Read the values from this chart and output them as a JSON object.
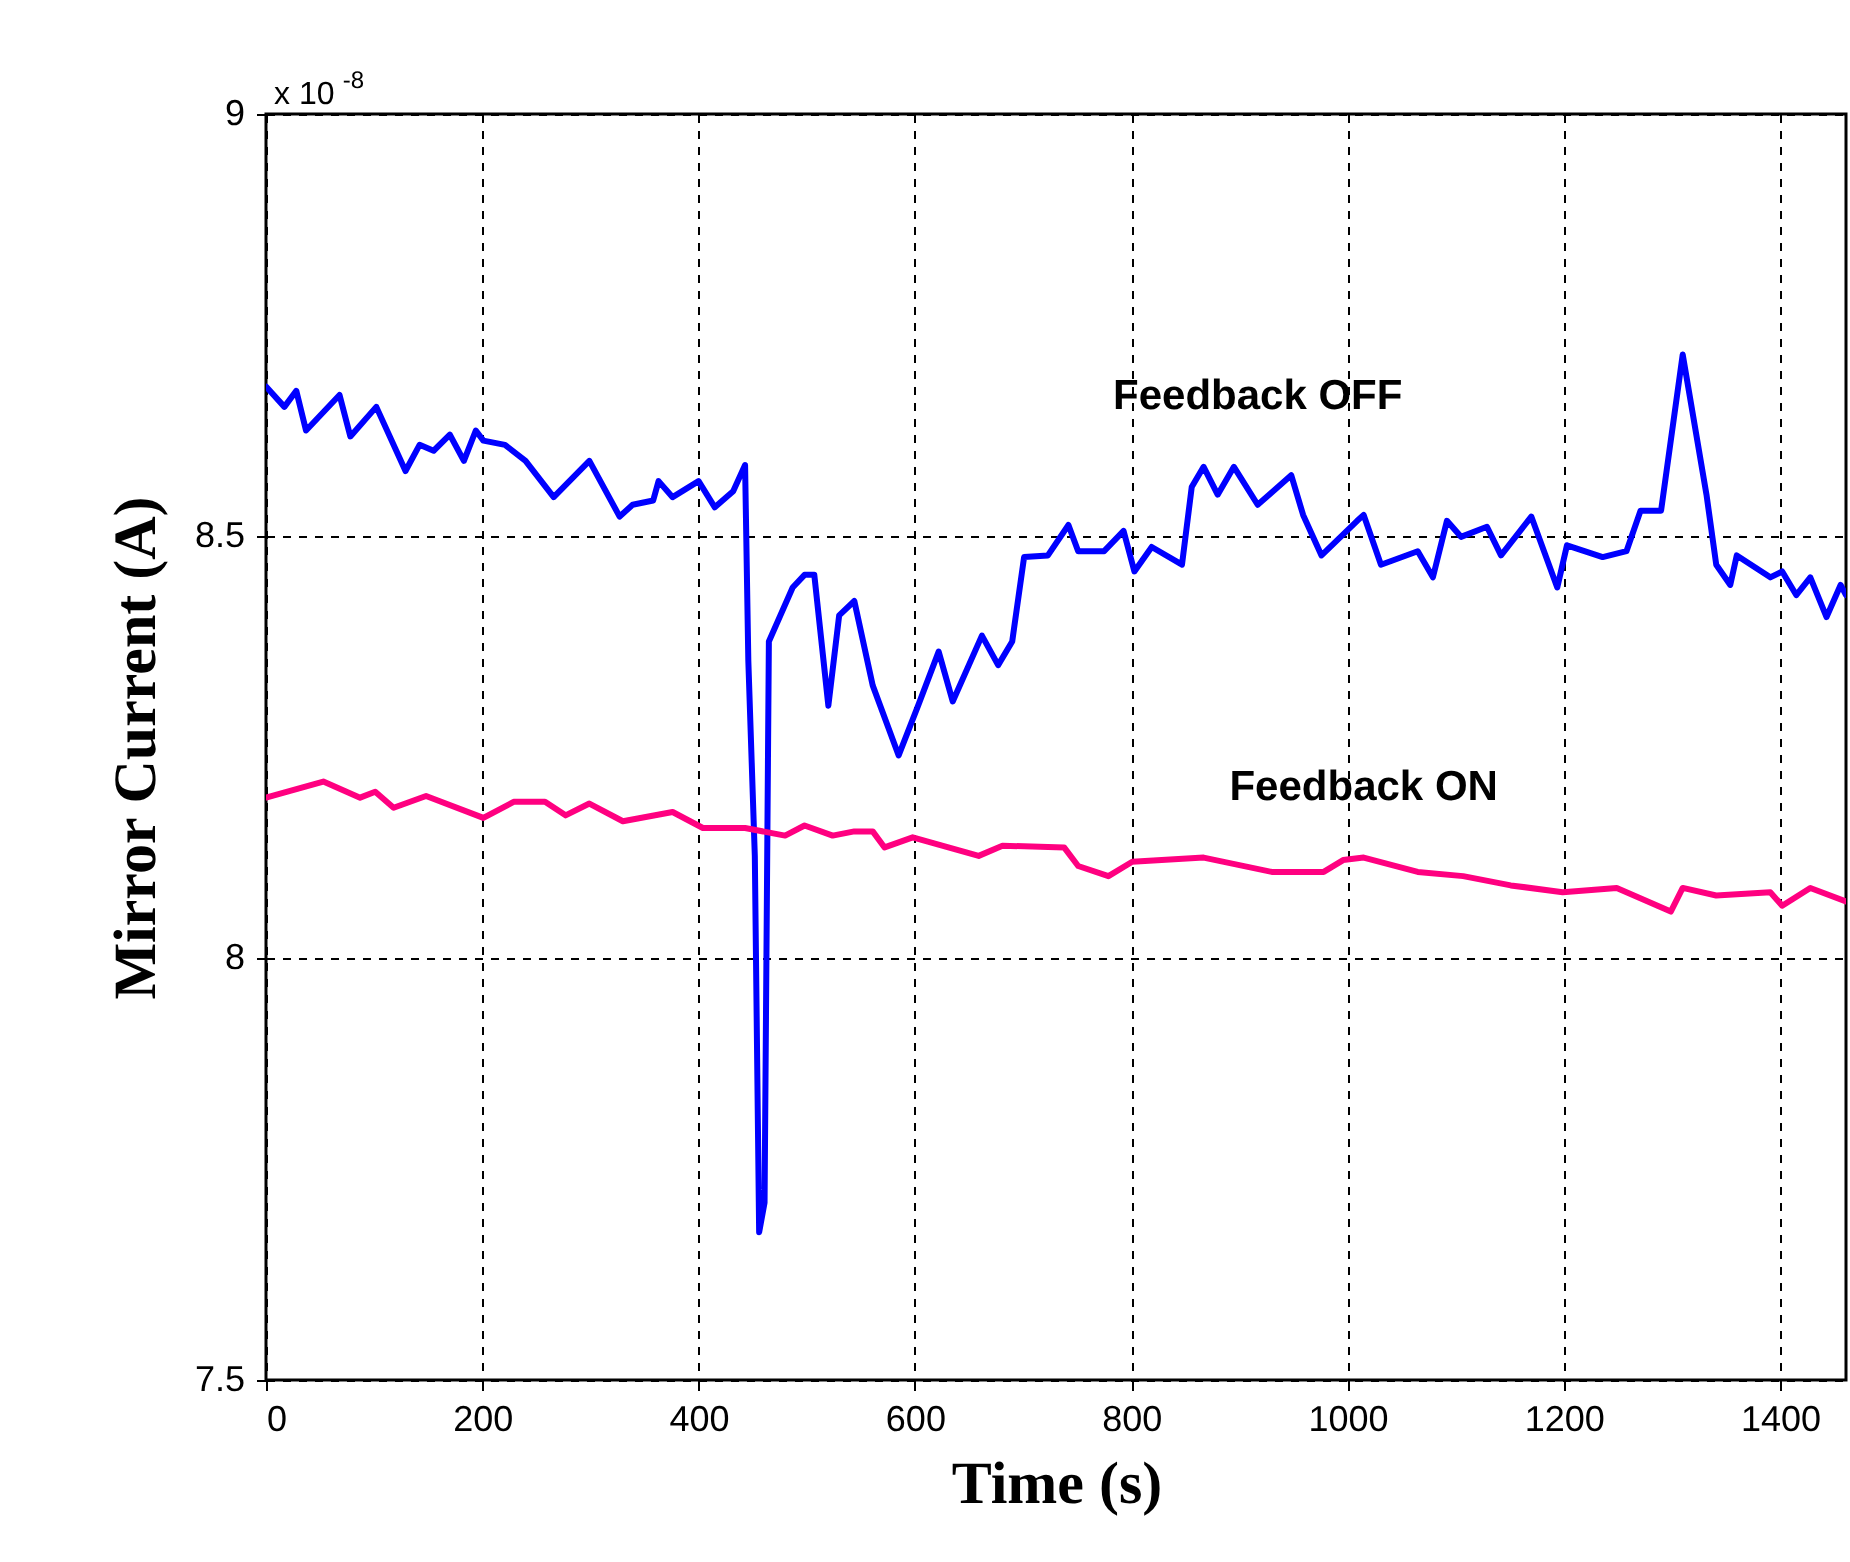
{
  "chart_data": {
    "type": "line",
    "xlabel": "Time (s)",
    "ylabel": "Mirror Current (A)",
    "xlim": [
      0,
      1461
    ],
    "xticks": [
      0,
      200,
      400,
      600,
      800,
      1000,
      1200,
      1400
    ],
    "ylim": [
      7.5,
      9
    ],
    "yticks": [
      7.5,
      8,
      8.5,
      9
    ],
    "grid": true,
    "legend": false,
    "marker": "none",
    "line_style": "solid",
    "annotations": [
      "x 10$^{-8}$"
    ],
    "series": [
      {
        "name": "Feedback OFF",
        "color": "#0000ff",
        "x": [
          0,
          17,
          28,
          37,
          68,
          78,
          102,
          129,
          142,
          155,
          170,
          183,
          194,
          201,
          221,
          240,
          266,
          299,
          327,
          339,
          358,
          363,
          376,
          400,
          415,
          432,
          443,
          446,
          452,
          456,
          461,
          465,
          487,
          498,
          507,
          520,
          530,
          544,
          561,
          585,
          603,
          622,
          635,
          662,
          677,
          690,
          701,
          723,
          742,
          751,
          775,
          793,
          803,
          819,
          847,
          856,
          867,
          880,
          895,
          917,
          948,
          959,
          976,
          1009,
          1015,
          1031,
          1065,
          1079,
          1092,
          1105,
          1129,
          1142,
          1170,
          1194,
          1203,
          1236,
          1258,
          1271,
          1290,
          1310,
          1332,
          1341,
          1354,
          1360,
          1391,
          1402,
          1415,
          1428,
          1443,
          1456,
          1461
        ],
        "values": [
          8.677,
          8.653,
          8.672,
          8.625,
          8.667,
          8.618,
          8.653,
          8.577,
          8.608,
          8.601,
          8.62,
          8.589,
          8.625,
          8.613,
          8.608,
          8.589,
          8.546,
          8.589,
          8.523,
          8.537,
          8.542,
          8.565,
          8.546,
          8.565,
          8.534,
          8.553,
          8.584,
          8.352,
          8.121,
          7.675,
          7.71,
          8.375,
          8.439,
          8.454,
          8.454,
          8.299,
          8.406,
          8.423,
          8.323,
          8.24,
          8.299,
          8.363,
          8.304,
          8.382,
          8.347,
          8.375,
          8.475,
          8.477,
          8.513,
          8.482,
          8.482,
          8.506,
          8.458,
          8.487,
          8.466,
          8.558,
          8.582,
          8.549,
          8.582,
          8.537,
          8.572,
          8.525,
          8.477,
          8.518,
          8.525,
          8.466,
          8.482,
          8.451,
          8.518,
          8.499,
          8.511,
          8.477,
          8.523,
          8.439,
          8.489,
          8.475,
          8.482,
          8.53,
          8.53,
          8.715,
          8.549,
          8.466,
          8.442,
          8.477,
          8.451,
          8.458,
          8.43,
          8.451,
          8.404,
          8.442,
          8.43
        ]
      },
      {
        "name": "Feedback ON",
        "color": "#ff0080",
        "x": [
          0,
          53,
          87,
          101,
          118,
          148,
          201,
          229,
          258,
          277,
          299,
          330,
          376,
          404,
          443,
          480,
          498,
          524,
          544,
          561,
          572,
          598,
          659,
          681,
          738,
          751,
          779,
          801,
          867,
          930,
          978,
          996,
          1015,
          1065,
          1107,
          1151,
          1199,
          1249,
          1299,
          1310,
          1341,
          1391,
          1402,
          1428,
          1461
        ],
        "values": [
          8.19,
          8.209,
          8.19,
          8.197,
          8.178,
          8.192,
          8.166,
          8.185,
          8.185,
          8.169,
          8.183,
          8.162,
          8.173,
          8.154,
          8.154,
          8.145,
          8.157,
          8.145,
          8.15,
          8.15,
          8.131,
          8.143,
          8.121,
          8.133,
          8.131,
          8.109,
          8.097,
          8.114,
          8.119,
          8.102,
          8.102,
          8.116,
          8.119,
          8.102,
          8.097,
          8.086,
          8.078,
          8.083,
          8.055,
          8.083,
          8.074,
          8.078,
          8.062,
          8.083,
          8.067
        ]
      }
    ]
  }
}
